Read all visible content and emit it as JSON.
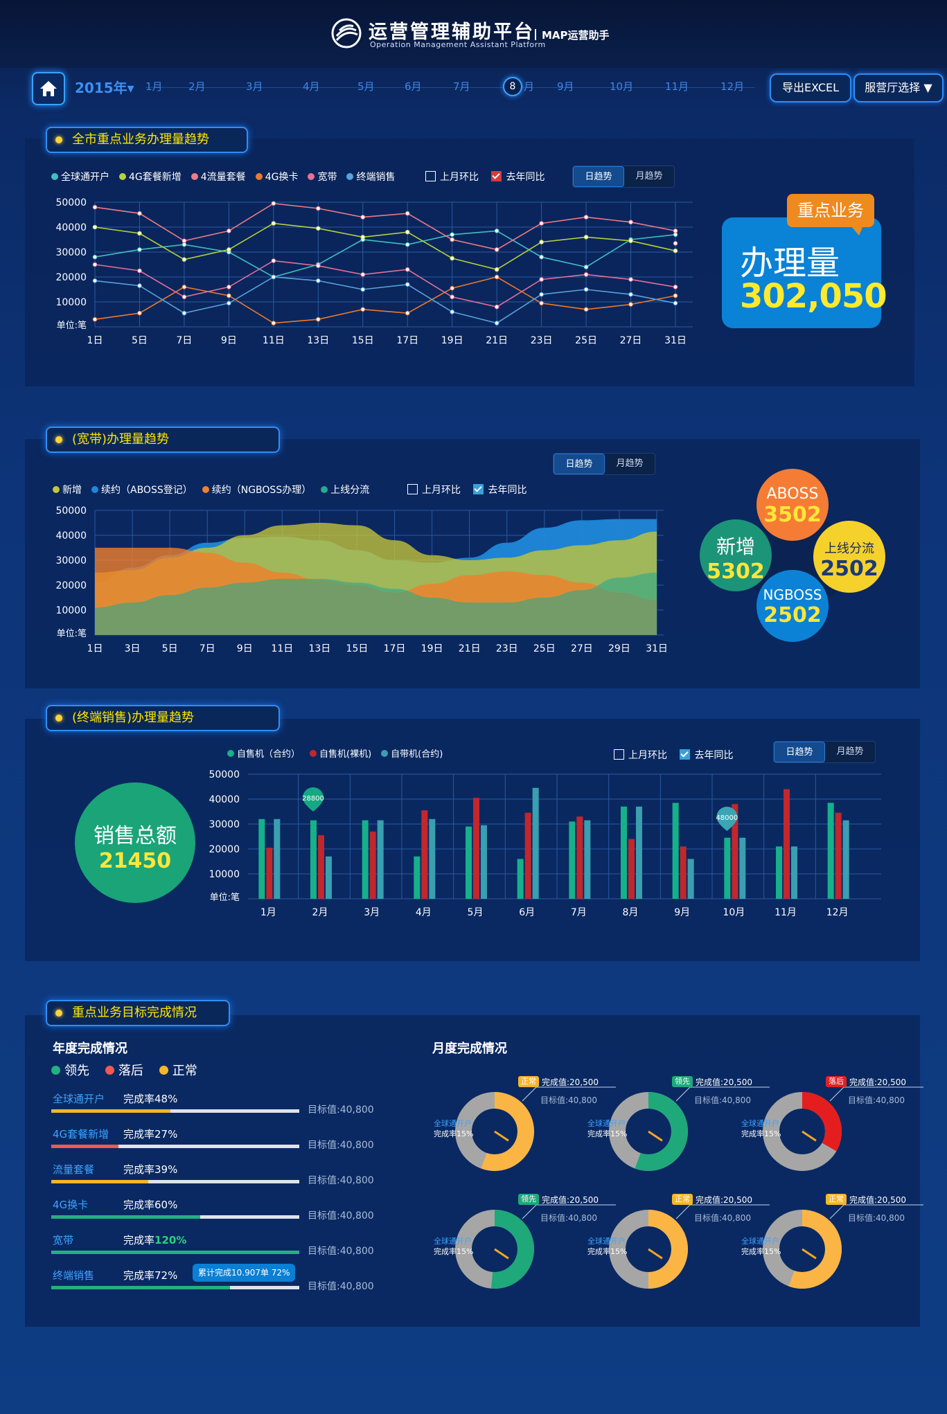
{
  "header": {
    "title": "运营管理辅助平台",
    "subtitle": "Operation Management Assistant Platform",
    "tag": "MAP运营助手"
  },
  "nav": {
    "year": "2015年▾",
    "months": [
      "1月",
      "2月",
      "3月",
      "4月",
      "5月",
      "6月",
      "7月",
      "8月",
      "9月",
      "10月",
      "11月",
      "12月"
    ],
    "active_month_num": "8",
    "active_month_suffix": "月",
    "export_label": "导出EXCEL",
    "hall_label": "服营厅选择 ▼"
  },
  "toggle": {
    "day": "日趋势",
    "month": "月趋势"
  },
  "checks": {
    "mom": "上月环比",
    "yoy": "去年同比"
  },
  "section1": {
    "title": "全市重点业务办理量趋势",
    "kpi_tag": "重点业务",
    "kpi_label": "办理量",
    "kpi_value": "302,050"
  },
  "section2": {
    "title": "(宽带)办理量趋势",
    "bubbles": {
      "aboss_label": "ABOSS",
      "aboss_value": "3502",
      "new_label": "新增",
      "new_value": "5302",
      "online_label": "上线分流",
      "online_value": "2502",
      "ngboss_label": "NGBOSS",
      "ngboss_value": "2502"
    }
  },
  "section3": {
    "title": "(终端销售)办理量趋势",
    "sales_label": "销售总额",
    "sales_value": "21450"
  },
  "section4": {
    "title": "重点业务目标完成情况",
    "annual_title": "年度完成情况",
    "monthly_title": "月度完成情况",
    "status": {
      "lead": "领先",
      "lag": "落后",
      "normal": "正常"
    },
    "colors": {
      "lead": "#24b07f",
      "lag": "#f05a50",
      "normal": "#f5b62a"
    },
    "annual": [
      {
        "name": "全球通开户",
        "rate": "完成率48%",
        "pct": 48,
        "target": "目标值:40,800",
        "color": "#f5b62a"
      },
      {
        "name": "4G套餐新增",
        "rate": "完成率27%",
        "pct": 27,
        "target": "目标值:40,800",
        "color": "#f05a50"
      },
      {
        "name": "流量套餐",
        "rate": "完成率39%",
        "pct": 39,
        "target": "目标值:40,800",
        "color": "#f5b62a"
      },
      {
        "name": "4G换卡",
        "rate": "完成率60%",
        "pct": 60,
        "target": "目标值:40,800",
        "color": "#24b07f"
      },
      {
        "name": "宽带",
        "rate_prefix": "完成率",
        "rate_hl": "120%",
        "pct": 100,
        "target": "目标值:40,800",
        "color": "#24b07f"
      },
      {
        "name": "终端销售",
        "rate": "完成率72%",
        "pct": 72,
        "target": "目标值:40,800",
        "color": "#24b07f",
        "badge": "累计完成10.907单 72%"
      }
    ],
    "monthly": [
      {
        "tag": "正常",
        "tag_color": "#f5b62a",
        "done": "完成值:20,500",
        "target": "目标值:40,800",
        "name": "全球通开户",
        "rate": "完成率15%",
        "arc": "#fbb545",
        "fill_deg": 200
      },
      {
        "tag": "领先",
        "tag_color": "#1fa87a",
        "done": "完成值:20,500",
        "target": "目标值:40,800",
        "name": "全球通开户",
        "rate": "完成率15%",
        "arc": "#1fa87a",
        "fill_deg": 200
      },
      {
        "tag": "落后",
        "tag_color": "#e02020",
        "done": "完成值:20,500",
        "target": "目标值:40,800",
        "name": "全球通开户",
        "rate": "完成率15%",
        "arc": "#e41e1e",
        "fill_deg": 120
      },
      {
        "tag": "领先",
        "tag_color": "#1fa87a",
        "done": "完成值:20,500",
        "target": "目标值:40,800",
        "name": "全球通开户",
        "rate": "完成率15%",
        "arc": "#1fa87a",
        "fill_deg": 185
      },
      {
        "tag": "正常",
        "tag_color": "#f5b62a",
        "done": "完成值:20,500",
        "target": "目标值:40,800",
        "name": "全球通开户",
        "rate": "完成率15%",
        "arc": "#fbb545",
        "fill_deg": 180
      },
      {
        "tag": "正常",
        "tag_color": "#f5b62a",
        "done": "完成值:20,500",
        "target": "目标值:40,800",
        "name": "全球通开户",
        "rate": "完成率15%",
        "arc": "#fbb545",
        "fill_deg": 200
      }
    ]
  },
  "chart_data": [
    {
      "type": "line",
      "unit_label": "单位:笔",
      "categories": [
        "1日",
        "5日",
        "7日",
        "9日",
        "11日",
        "13日",
        "15日",
        "17日",
        "19日",
        "21日",
        "23日",
        "25日",
        "27日",
        "31日"
      ],
      "ylim": [
        0,
        50000
      ],
      "yticks": [
        "50000",
        "40000",
        "30000",
        "20000",
        "10000"
      ],
      "series": [
        {
          "name": "全球通开户",
          "color": "#3fc0c0",
          "values": [
            28000,
            31000,
            33000,
            30000,
            20000,
            25000,
            35000,
            33000,
            37000,
            38500,
            28000,
            24000,
            35000,
            37000
          ]
        },
        {
          "name": "4G套餐新增",
          "color": "#b7d23a",
          "values": [
            40000,
            37500,
            27000,
            31000,
            41500,
            39500,
            36000,
            38000,
            27500,
            23000,
            34000,
            36000,
            34500,
            30500
          ]
        },
        {
          "name": "4流量套餐",
          "color": "#f07a86",
          "values": [
            48000,
            45500,
            34500,
            38500,
            49500,
            47500,
            44000,
            45500,
            35000,
            31000,
            41500,
            44000,
            42000,
            38500
          ]
        },
        {
          "name": "4G换卡",
          "color": "#f0782a",
          "values": [
            3000,
            5500,
            16000,
            12500,
            1500,
            3000,
            7000,
            5500,
            15500,
            20000,
            9500,
            7000,
            9000,
            12500
          ]
        },
        {
          "name": "宽带",
          "color": "#e76f98",
          "values": [
            25000,
            22500,
            12000,
            16000,
            26500,
            24500,
            21000,
            23000,
            12000,
            8000,
            19000,
            21000,
            19000,
            16000
          ]
        },
        {
          "name": "终端销售",
          "color": "#58a3dd",
          "values": [
            18500,
            16500,
            5500,
            9500,
            20000,
            18500,
            15000,
            17000,
            6000,
            1500,
            13000,
            15000,
            13000,
            9500
          ]
        }
      ],
      "extra_points": [
        {
          "x": "31日",
          "y": 33500
        }
      ]
    },
    {
      "type": "area",
      "unit_label": "单位:笔",
      "categories": [
        "1日",
        "3日",
        "5日",
        "7日",
        "9日",
        "11日",
        "13日",
        "15日",
        "17日",
        "19日",
        "21日",
        "23日",
        "25日",
        "27日",
        "29日",
        "31日"
      ],
      "ylim": [
        0,
        50000
      ],
      "yticks": [
        "50000",
        "40000",
        "30000",
        "20000",
        "10000"
      ],
      "series": [
        {
          "name": "新增",
          "color": "#c5c538",
          "values": [
            25000,
            26000,
            31000,
            35000,
            40000,
            44000,
            45000,
            44000,
            38000,
            32000,
            30000,
            31000,
            34000,
            36000,
            38000,
            41500
          ]
        },
        {
          "name": "续约（ABOSS登记）",
          "color": "#1f88d8",
          "values": [
            21000,
            27000,
            32000,
            37000,
            39000,
            39500,
            38000,
            34000,
            30000,
            29000,
            31000,
            37000,
            43000,
            46000,
            46500,
            46500
          ]
        },
        {
          "name": "续约（NGBOSS办理）",
          "color": "#f0802a",
          "values": [
            35000,
            35000,
            35000,
            33000,
            29000,
            25000,
            22000,
            20000,
            17000,
            20500,
            24000,
            25500,
            24000,
            21000,
            17000,
            14000
          ]
        },
        {
          "name": "上线分流",
          "color": "#2aa88c",
          "values": [
            11000,
            13000,
            16000,
            19000,
            21000,
            22500,
            22500,
            21000,
            18500,
            15000,
            13000,
            13000,
            15000,
            18000,
            23000,
            25000
          ]
        }
      ]
    },
    {
      "type": "bar",
      "unit_label": "单位:笔",
      "categories": [
        "1月",
        "2月",
        "3月",
        "4月",
        "5月",
        "6月",
        "7月",
        "8月",
        "9月",
        "10月",
        "11月",
        "12月"
      ],
      "ylim": [
        0,
        50000
      ],
      "yticks": [
        "50000",
        "40000",
        "30000",
        "20000",
        "10000"
      ],
      "series": [
        {
          "name": "自售机（合约）",
          "color": "#16b08a",
          "values": [
            32000,
            31500,
            31500,
            17000,
            29000,
            16000,
            31000,
            37000,
            38500,
            24500,
            21000,
            38500
          ]
        },
        {
          "name": "自售机(裸机)",
          "color": "#c1272d",
          "values": [
            20500,
            25500,
            27000,
            35500,
            40500,
            34500,
            33000,
            24000,
            21000,
            38000,
            44000,
            34500
          ]
        },
        {
          "name": "自带机(合约)",
          "color": "#3a9fb0",
          "values": [
            32000,
            17000,
            31500,
            32000,
            29500,
            44500,
            31500,
            37000,
            16000,
            24500,
            21000,
            31500
          ]
        }
      ],
      "annotations": [
        {
          "category": "2月",
          "value": "28800"
        },
        {
          "category": "10月",
          "value": "48000"
        }
      ]
    }
  ]
}
